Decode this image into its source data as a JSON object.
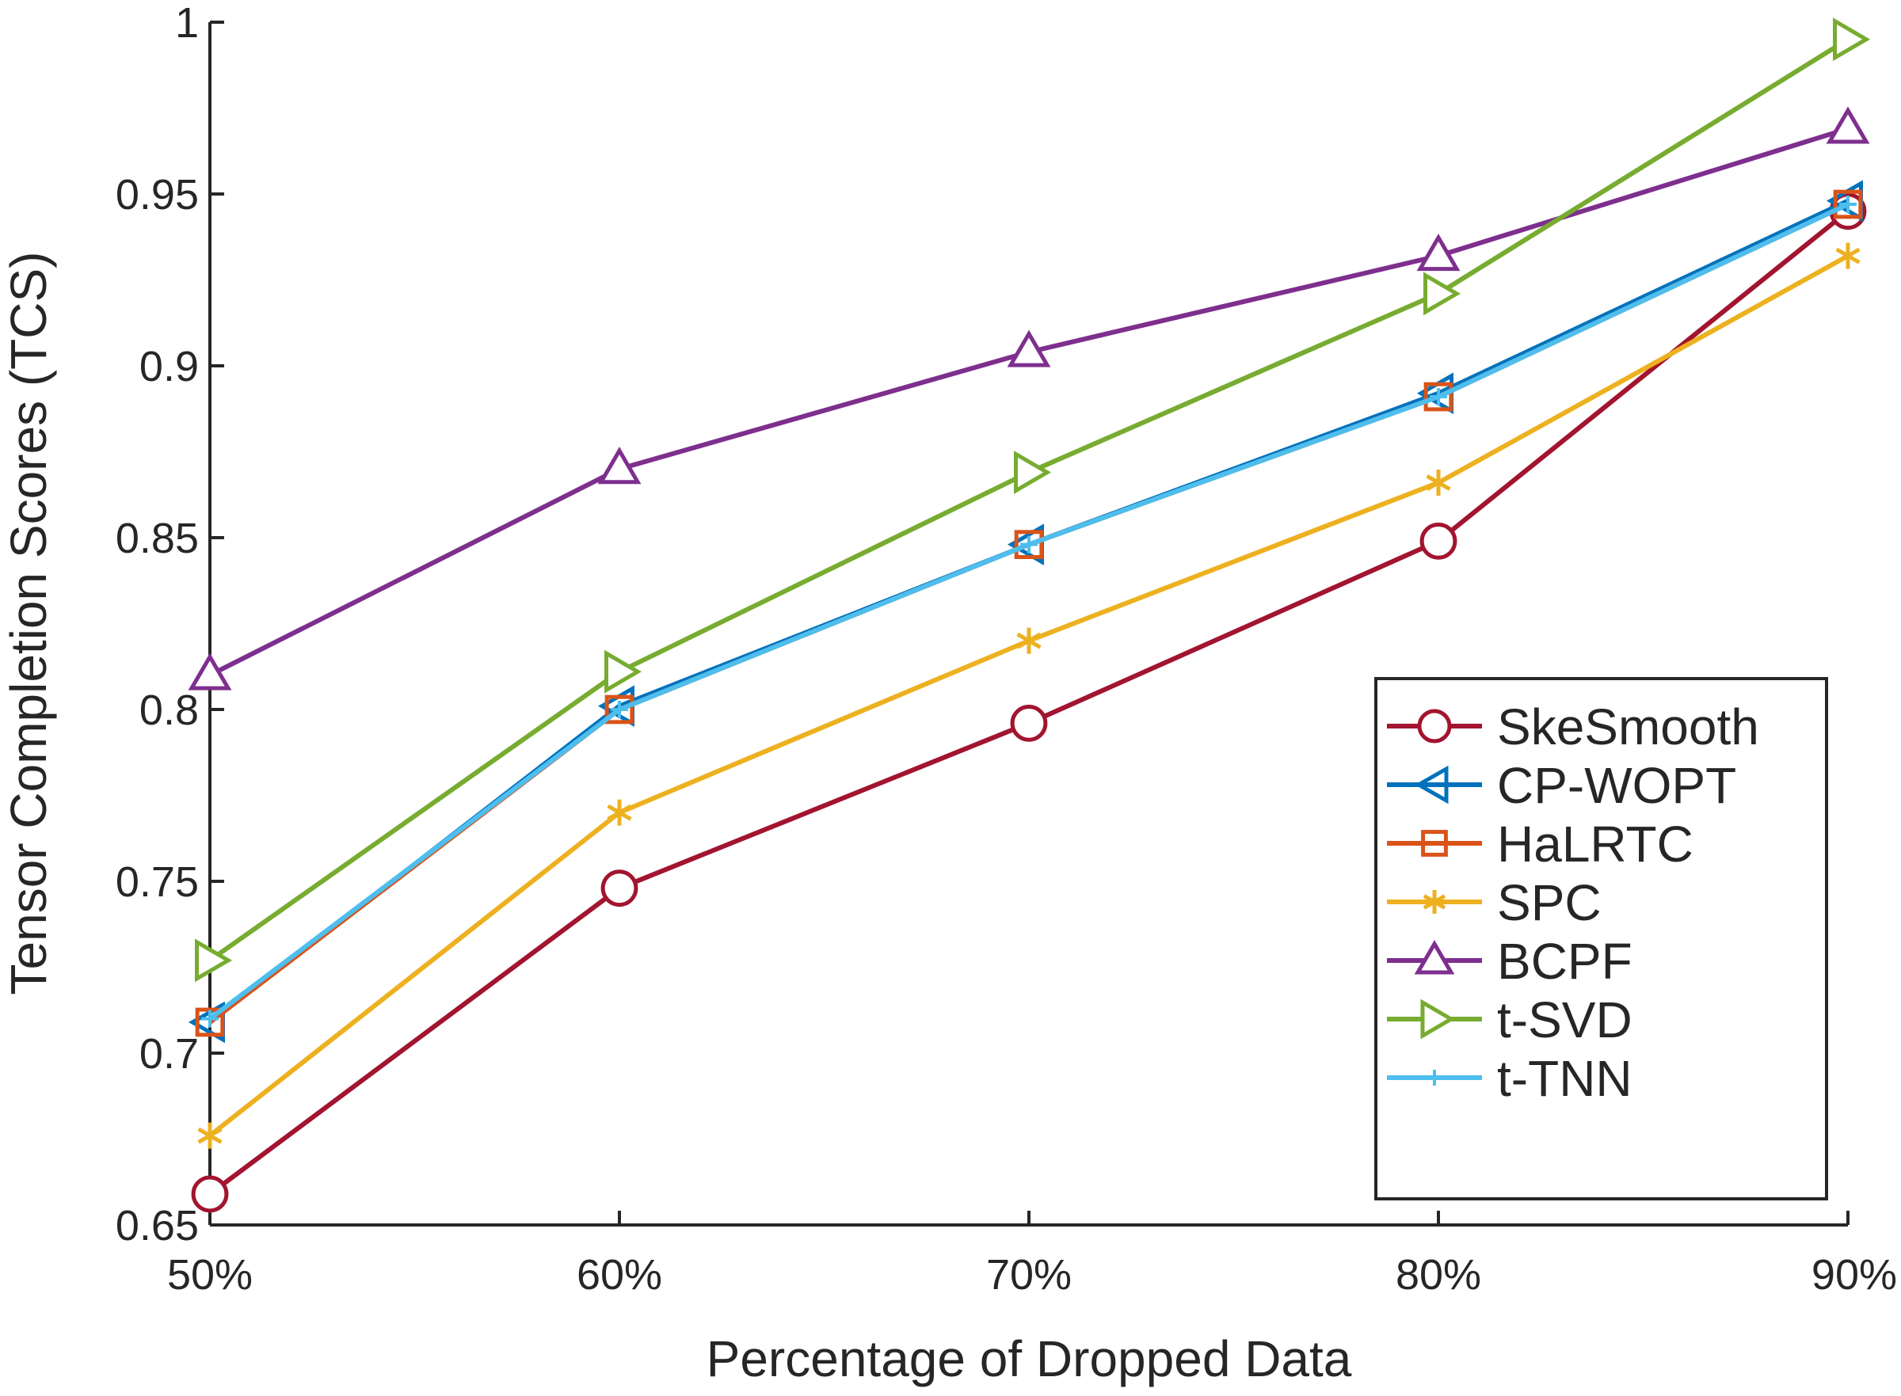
{
  "chart_data": {
    "type": "line",
    "title": "",
    "xlabel": "Percentage of Dropped Data",
    "ylabel": "Tensor Completion Scores (TCS)",
    "categories": [
      "50%",
      "60%",
      "70%",
      "80%",
      "90%"
    ],
    "ylim": [
      0.65,
      1.0
    ],
    "yticks": [
      0.65,
      0.7,
      0.75,
      0.8,
      0.85,
      0.9,
      0.95,
      1.0
    ],
    "ytick_labels": [
      "0.65",
      "0.7",
      "0.75",
      "0.8",
      "0.85",
      "0.9",
      "0.95",
      "1"
    ],
    "grid": false,
    "legend_location": "bottom-right",
    "series": [
      {
        "name": "SkeSmooth",
        "color": "#A2142F",
        "marker": "circle",
        "values": [
          0.659,
          0.748,
          0.796,
          0.849,
          0.945
        ]
      },
      {
        "name": "CP-WOPT",
        "color": "#0072BD",
        "marker": "triangle-left",
        "values": [
          0.709,
          0.801,
          0.848,
          0.892,
          0.948
        ]
      },
      {
        "name": "HaLRTC",
        "color": "#D95319",
        "marker": "square",
        "values": [
          0.709,
          0.8,
          0.848,
          0.891,
          0.947
        ]
      },
      {
        "name": "SPC",
        "color": "#EDB120",
        "marker": "asterisk",
        "values": [
          0.676,
          0.77,
          0.82,
          0.866,
          0.932
        ]
      },
      {
        "name": "BCPF",
        "color": "#7E2F8E",
        "marker": "triangle-up",
        "values": [
          0.81,
          0.87,
          0.904,
          0.932,
          0.969
        ]
      },
      {
        "name": "t-SVD",
        "color": "#77AC30",
        "marker": "triangle-right",
        "values": [
          0.727,
          0.811,
          0.869,
          0.921,
          0.995
        ]
      },
      {
        "name": "t-TNN",
        "color": "#4DBEEE",
        "marker": "plus",
        "values": [
          0.71,
          0.8,
          0.848,
          0.891,
          0.947
        ]
      }
    ]
  }
}
